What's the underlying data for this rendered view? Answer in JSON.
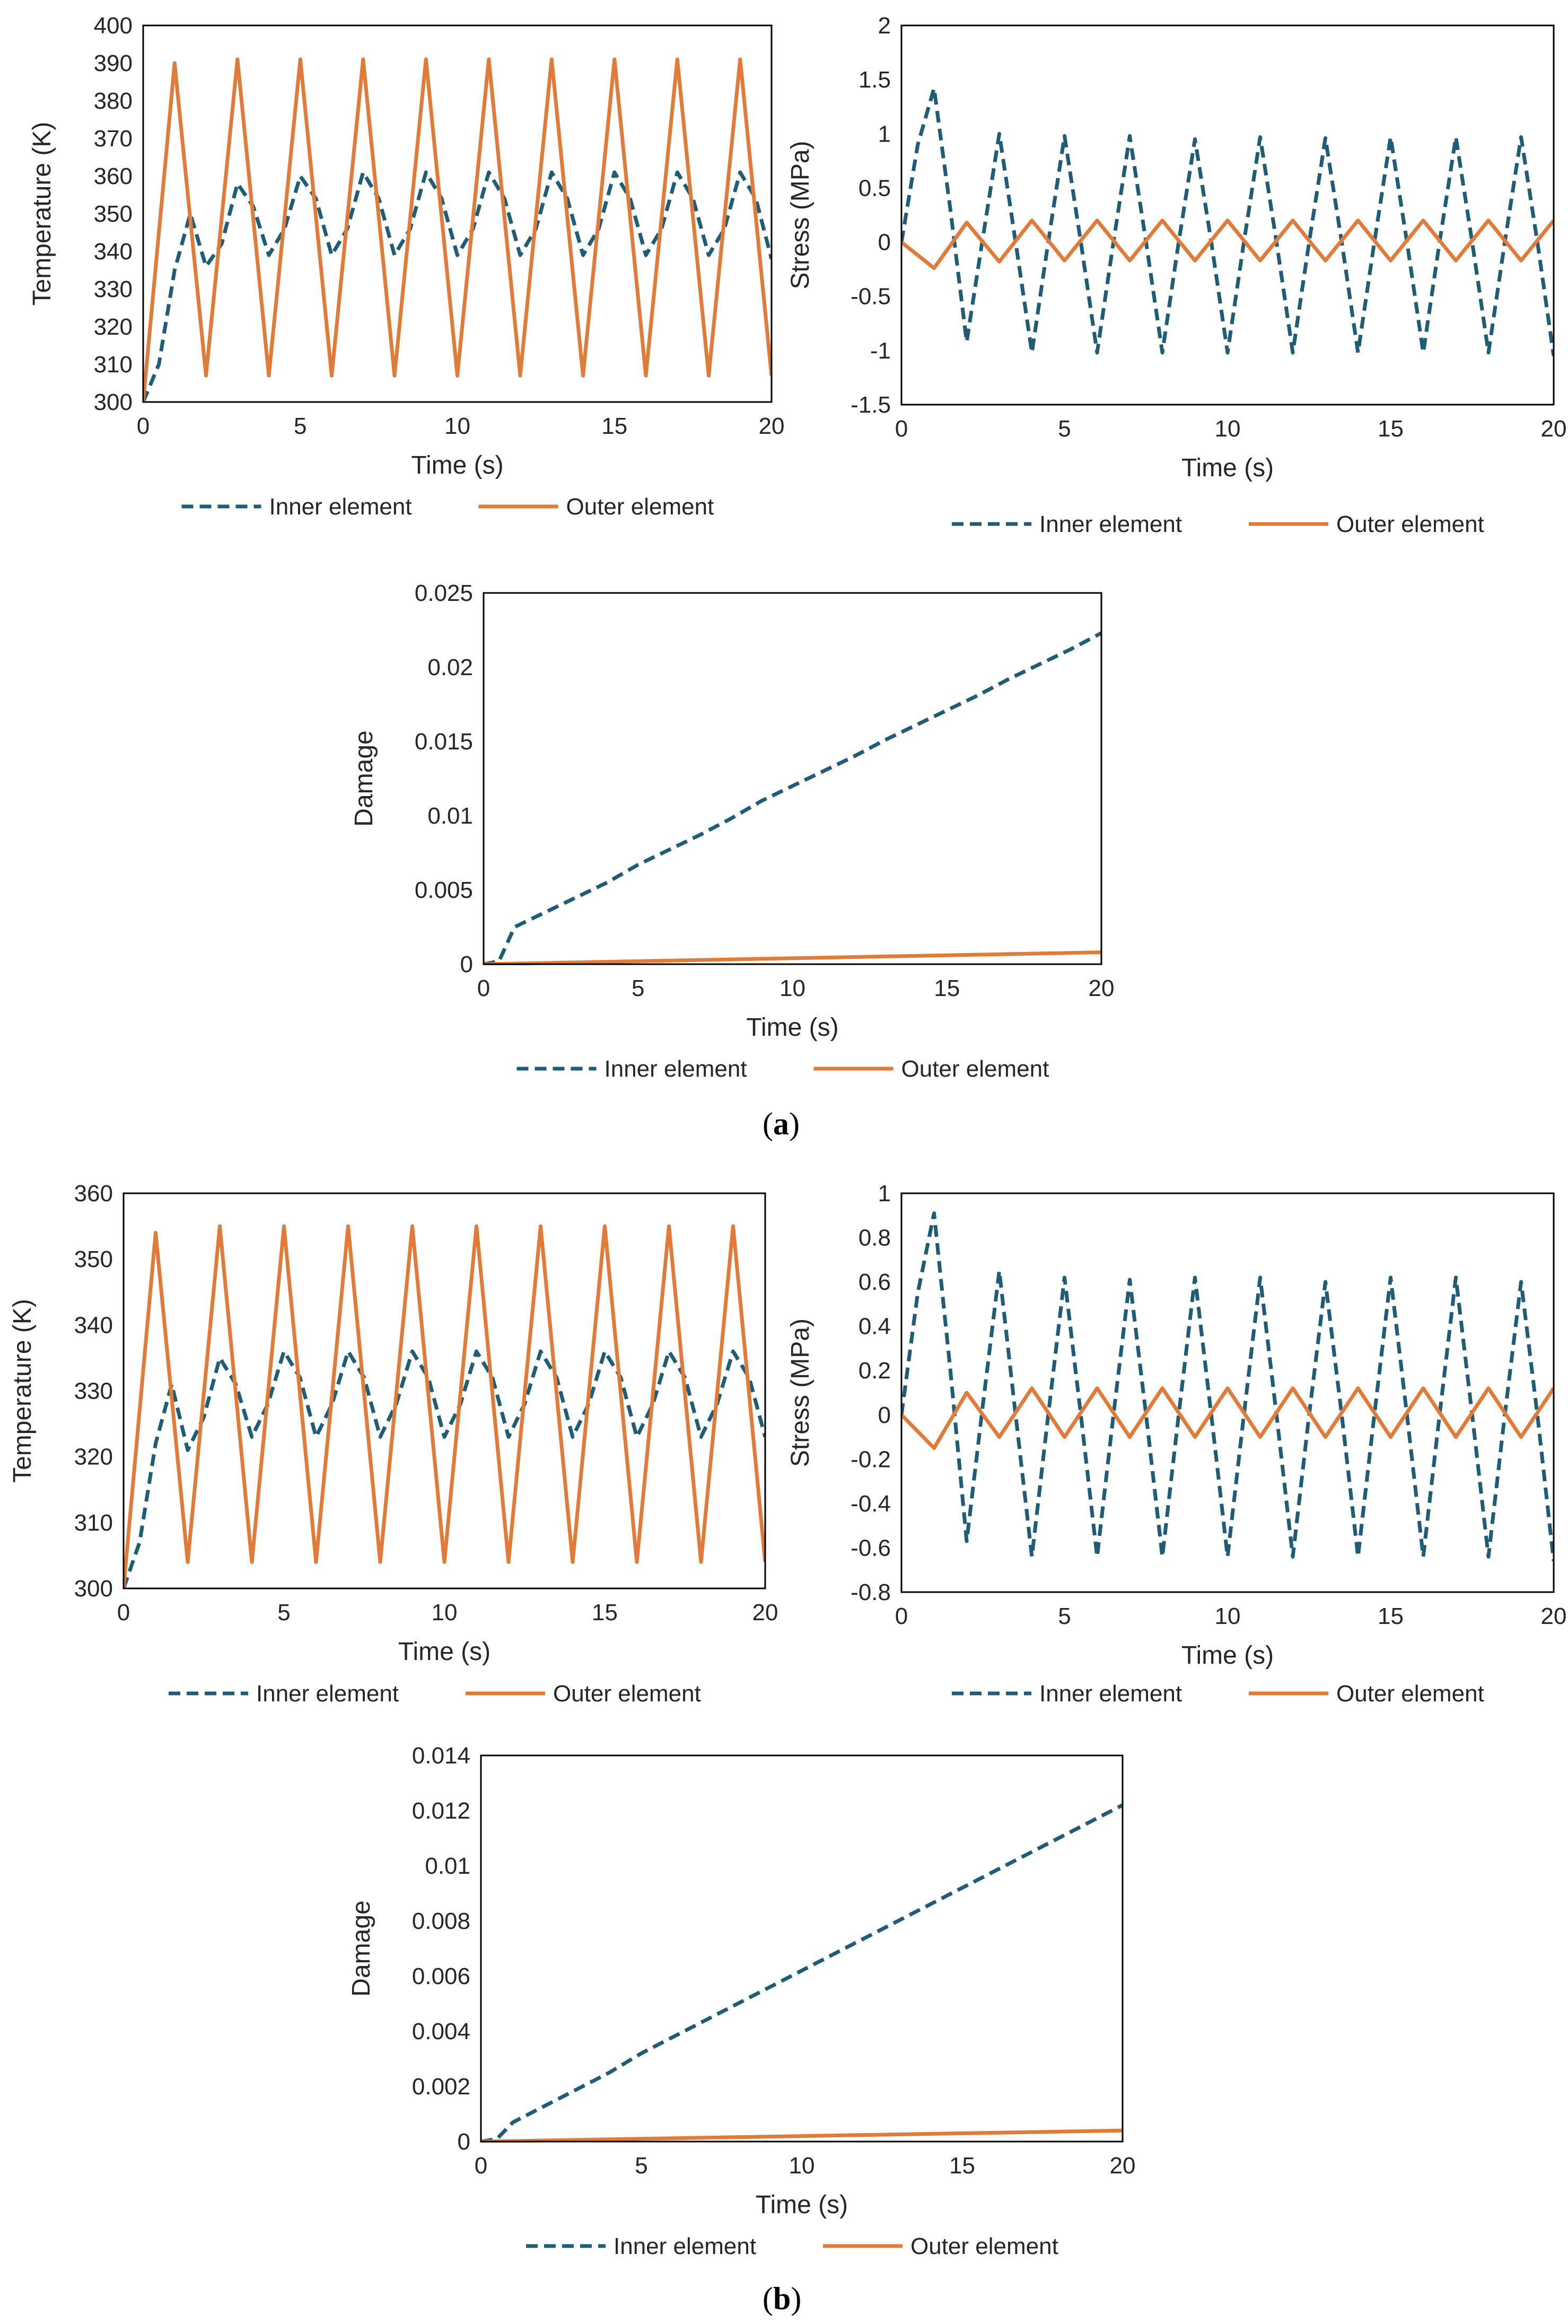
{
  "colors": {
    "inner": "#1F5C75",
    "outer": "#E07B39",
    "axis": "#000000",
    "text": "#262626"
  },
  "legend": {
    "inner_label": "Inner element",
    "outer_label": "Outer element"
  },
  "panel_labels": {
    "a": "a",
    "b": "b"
  },
  "chart_data": [
    {
      "id": "a_temperature",
      "type": "line",
      "panel": "a",
      "xlabel": "Time (s)",
      "ylabel": "Temperature (K)",
      "xlim": [
        0,
        20
      ],
      "ylim": [
        300,
        400
      ],
      "xticks": [
        "0",
        "5",
        "10",
        "15",
        "20"
      ],
      "yticks": [
        "300",
        "310",
        "320",
        "330",
        "340",
        "350",
        "360",
        "370",
        "380",
        "390",
        "400"
      ],
      "series": [
        {
          "name": "Inner element",
          "style": "dashed",
          "x": [
            0,
            0.5,
            1,
            1.5,
            2,
            2.5,
            3,
            3.5,
            4,
            4.5,
            5,
            5.5,
            6,
            6.5,
            7,
            7.5,
            8,
            8.5,
            9,
            9.5,
            10,
            10.5,
            11,
            11.5,
            12,
            12.5,
            13,
            13.5,
            14,
            14.5,
            15,
            15.5,
            16,
            16.5,
            17,
            17.5,
            18,
            18.5,
            19,
            19.5,
            20
          ],
          "y": [
            300,
            310,
            335,
            350,
            336,
            342,
            358,
            352,
            339,
            346,
            360,
            354,
            339,
            346,
            361,
            354,
            339,
            346,
            361,
            354,
            339,
            346,
            361,
            354,
            339,
            346,
            361,
            354,
            339,
            346,
            361,
            354,
            339,
            346,
            361,
            354,
            339,
            346,
            361,
            354,
            338
          ]
        },
        {
          "name": "Outer element",
          "style": "solid",
          "x": [
            0,
            1,
            2,
            3,
            4,
            5,
            6,
            7,
            8,
            9,
            10,
            11,
            12,
            13,
            14,
            15,
            16,
            17,
            18,
            19,
            20
          ],
          "y": [
            300,
            390,
            307,
            391,
            307,
            391,
            307,
            391,
            307,
            391,
            307,
            391,
            307,
            391,
            307,
            391,
            307,
            391,
            307,
            391,
            307
          ]
        }
      ]
    },
    {
      "id": "a_stress",
      "type": "line",
      "panel": "a",
      "xlabel": "Time (s)",
      "ylabel": "Stress (MPa)",
      "xlim": [
        0,
        20
      ],
      "ylim": [
        -1.5,
        2
      ],
      "xticks": [
        "0",
        "5",
        "10",
        "15",
        "20"
      ],
      "yticks": [
        "-1.5",
        "-1",
        "-0.5",
        "0",
        "0.5",
        "1",
        "1.5",
        "2"
      ],
      "series": [
        {
          "name": "Inner element",
          "style": "dashed",
          "x": [
            0,
            0.5,
            1,
            1.5,
            2,
            2.5,
            3,
            3.5,
            4,
            4.5,
            5,
            5.5,
            6,
            6.5,
            7,
            7.5,
            8,
            8.5,
            9,
            9.5,
            10,
            10.5,
            11,
            11.5,
            12,
            12.5,
            13,
            13.5,
            14,
            14.5,
            15,
            15.5,
            16,
            16.5,
            17,
            17.5,
            18,
            18.5,
            19,
            19.5,
            20
          ],
          "y": [
            0,
            0.9,
            1.42,
            0.3,
            -0.92,
            0.05,
            1.0,
            0,
            -1.02,
            0,
            0.98,
            0,
            -1.02,
            0,
            0.98,
            0,
            -1.02,
            0,
            0.95,
            0,
            -1.02,
            0,
            0.97,
            0,
            -1.02,
            0,
            0.96,
            0,
            -1.02,
            0,
            0.97,
            0,
            -1.02,
            0,
            0.97,
            0,
            -1.02,
            0,
            0.97,
            0,
            -1.05
          ]
        },
        {
          "name": "Outer element",
          "style": "solid",
          "x": [
            0,
            1,
            2,
            3,
            4,
            5,
            6,
            7,
            8,
            9,
            10,
            11,
            12,
            13,
            14,
            15,
            16,
            17,
            18,
            19,
            20
          ],
          "y": [
            0,
            -0.24,
            0.18,
            -0.18,
            0.2,
            -0.17,
            0.2,
            -0.17,
            0.2,
            -0.17,
            0.2,
            -0.17,
            0.2,
            -0.17,
            0.2,
            -0.17,
            0.2,
            -0.17,
            0.2,
            -0.17,
            0.2
          ]
        }
      ]
    },
    {
      "id": "a_damage",
      "type": "line",
      "panel": "a",
      "xlabel": "Time (s)",
      "ylabel": "Damage",
      "xlim": [
        0,
        20
      ],
      "ylim": [
        0,
        0.025
      ],
      "xticks": [
        "0",
        "5",
        "10",
        "15",
        "20"
      ],
      "yticks": [
        "0",
        "0.005",
        "0.01",
        "0.015",
        "0.02",
        "0.025"
      ],
      "series": [
        {
          "name": "Inner element",
          "style": "dashed",
          "x": [
            0,
            0.5,
            1,
            2,
            3,
            4,
            5,
            6,
            7,
            8,
            9,
            10,
            11,
            12,
            13,
            14,
            15,
            16,
            17,
            18,
            19,
            20
          ],
          "y": [
            0,
            0.0002,
            0.0025,
            0.0035,
            0.0045,
            0.0055,
            0.0067,
            0.0077,
            0.0087,
            0.0098,
            0.011,
            0.012,
            0.013,
            0.014,
            0.0151,
            0.0161,
            0.0171,
            0.0181,
            0.0192,
            0.0202,
            0.0212,
            0.0223
          ]
        },
        {
          "name": "Outer element",
          "style": "solid",
          "x": [
            0,
            5,
            10,
            15,
            20
          ],
          "y": [
            0,
            0.0002,
            0.0004,
            0.0006,
            0.0008
          ]
        }
      ]
    },
    {
      "id": "b_temperature",
      "type": "line",
      "panel": "b",
      "xlabel": "Time (s)",
      "ylabel": "Temperature (K)",
      "xlim": [
        0,
        20
      ],
      "ylim": [
        300,
        360
      ],
      "xticks": [
        "0",
        "5",
        "10",
        "15",
        "20"
      ],
      "yticks": [
        "300",
        "310",
        "320",
        "330",
        "340",
        "350",
        "360"
      ],
      "series": [
        {
          "name": "Inner element",
          "style": "dashed",
          "x": [
            0,
            0.5,
            1,
            1.5,
            2,
            2.5,
            3,
            3.5,
            4,
            4.5,
            5,
            5.5,
            6,
            6.5,
            7,
            7.5,
            8,
            8.5,
            9,
            9.5,
            10,
            10.5,
            11,
            11.5,
            12,
            12.5,
            13,
            13.5,
            14,
            14.5,
            15,
            15.5,
            16,
            16.5,
            17,
            17.5,
            18,
            18.5,
            19,
            19.5,
            20
          ],
          "y": [
            300,
            307,
            322,
            331,
            321,
            326,
            335,
            331,
            323,
            328,
            336,
            332,
            323,
            328,
            336,
            332,
            323,
            328,
            336,
            332,
            323,
            328,
            336,
            332,
            323,
            328,
            336,
            332,
            323,
            328,
            336,
            332,
            323,
            328,
            336,
            332,
            323,
            328,
            336,
            332,
            323
          ]
        },
        {
          "name": "Outer element",
          "style": "solid",
          "x": [
            0,
            1,
            2,
            3,
            4,
            5,
            6,
            7,
            8,
            9,
            10,
            11,
            12,
            13,
            14,
            15,
            16,
            17,
            18,
            19,
            20
          ],
          "y": [
            300,
            354,
            304,
            355,
            304,
            355,
            304,
            355,
            304,
            355,
            304,
            355,
            304,
            355,
            304,
            355,
            304,
            355,
            304,
            355,
            304
          ]
        }
      ]
    },
    {
      "id": "b_stress",
      "type": "line",
      "panel": "b",
      "xlabel": "Time (s)",
      "ylabel": "Stress (MPa)",
      "xlim": [
        0,
        20
      ],
      "ylim": [
        -0.8,
        1
      ],
      "xticks": [
        "0",
        "5",
        "10",
        "15",
        "20"
      ],
      "yticks": [
        "-0.8",
        "-0.6",
        "-0.4",
        "-0.2",
        "0",
        "0.2",
        "0.4",
        "0.6",
        "0.8",
        "1"
      ],
      "series": [
        {
          "name": "Inner element",
          "style": "dashed",
          "x": [
            0,
            0.5,
            1,
            1.5,
            2,
            2.5,
            3,
            3.5,
            4,
            4.5,
            5,
            5.5,
            6,
            6.5,
            7,
            7.5,
            8,
            8.5,
            9,
            9.5,
            10,
            10.5,
            11,
            11.5,
            12,
            12.5,
            13,
            13.5,
            14,
            14.5,
            15,
            15.5,
            16,
            16.5,
            17,
            17.5,
            18,
            18.5,
            19,
            19.5,
            20
          ],
          "y": [
            0,
            0.55,
            0.91,
            0.2,
            -0.57,
            0.05,
            0.65,
            0,
            -0.64,
            0,
            0.62,
            0,
            -0.64,
            0,
            0.61,
            0,
            -0.64,
            0,
            0.62,
            0,
            -0.64,
            0,
            0.62,
            0,
            -0.64,
            0,
            0.6,
            0,
            -0.64,
            0,
            0.62,
            0,
            -0.64,
            0,
            0.62,
            0,
            -0.64,
            0,
            0.6,
            0,
            -0.66
          ]
        },
        {
          "name": "Outer element",
          "style": "solid",
          "x": [
            0,
            1,
            2,
            3,
            4,
            5,
            6,
            7,
            8,
            9,
            10,
            11,
            12,
            13,
            14,
            15,
            16,
            17,
            18,
            19,
            20
          ],
          "y": [
            0,
            -0.15,
            0.1,
            -0.1,
            0.12,
            -0.1,
            0.12,
            -0.1,
            0.12,
            -0.1,
            0.12,
            -0.1,
            0.12,
            -0.1,
            0.12,
            -0.1,
            0.12,
            -0.1,
            0.12,
            -0.1,
            0.12
          ]
        }
      ]
    },
    {
      "id": "b_damage",
      "type": "line",
      "panel": "b",
      "xlabel": "Time (s)",
      "ylabel": "Damage",
      "xlim": [
        0,
        20
      ],
      "ylim": [
        0,
        0.014
      ],
      "xticks": [
        "0",
        "5",
        "10",
        "15",
        "20"
      ],
      "yticks": [
        "0",
        "0.002",
        "0.004",
        "0.006",
        "0.008",
        "0.01",
        "0.012",
        "0.014"
      ],
      "series": [
        {
          "name": "Inner element",
          "style": "dashed",
          "x": [
            0,
            0.5,
            1,
            2,
            3,
            4,
            5,
            6,
            7,
            8,
            9,
            10,
            11,
            12,
            13,
            14,
            15,
            16,
            17,
            18,
            19,
            20
          ],
          "y": [
            0,
            0.0001,
            0.0007,
            0.0013,
            0.0019,
            0.0025,
            0.0032,
            0.0038,
            0.0044,
            0.005,
            0.0056,
            0.0062,
            0.0068,
            0.0074,
            0.008,
            0.0086,
            0.0092,
            0.0098,
            0.0104,
            0.011,
            0.0116,
            0.0122
          ]
        },
        {
          "name": "Outer element",
          "style": "solid",
          "x": [
            0,
            5,
            10,
            15,
            20
          ],
          "y": [
            0,
            0.0001,
            0.0002,
            0.0003,
            0.0004
          ]
        }
      ]
    }
  ]
}
